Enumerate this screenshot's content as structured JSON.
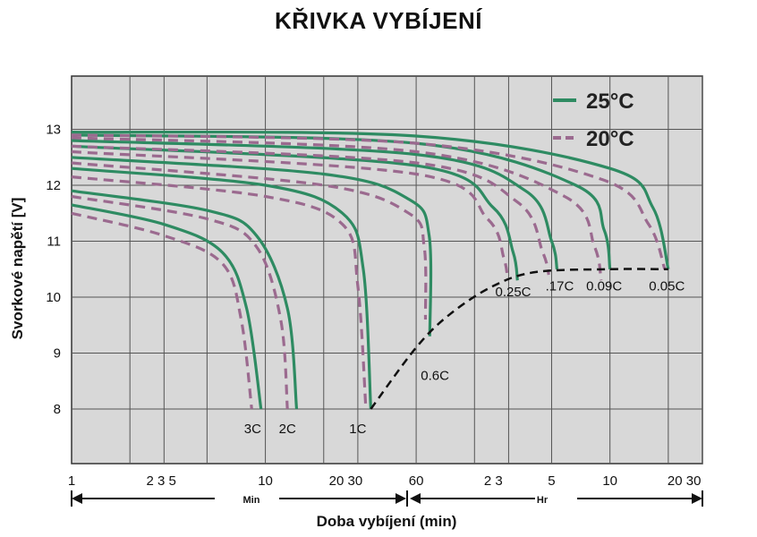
{
  "chart_data": {
    "type": "line",
    "title": "KŘIVKA VYBÍJENÍ",
    "ylabel": "Svorkové napětí [V]",
    "xlabel": "Doba vybíjení (min)",
    "ylim": [
      7,
      14
    ],
    "y_ticks": [
      "13",
      "12",
      "11",
      "10",
      "9",
      "8"
    ],
    "x_scale": "log",
    "x_unit_min_label": "Min",
    "x_unit_hr_label": "Hr",
    "x_tick_labels_min": [
      "1",
      "2 3 5",
      "10",
      "20 30",
      "60"
    ],
    "x_tick_labels_hr": [
      "2 3",
      "5",
      "10",
      "20 30"
    ],
    "grid": true,
    "legend_position": "top-right",
    "legend": [
      {
        "name": "25°C",
        "color": "#2e8b62",
        "style": "solid"
      },
      {
        "name": "20°C",
        "color": "#9b6a8f",
        "style": "dashed"
      }
    ],
    "curve_labels": [
      "3C",
      "2C",
      "1C",
      "0.6C",
      "0.25C",
      ".17C",
      "0.09C",
      "0.05C"
    ],
    "series": [
      {
        "label": "3C",
        "temp": "25°C",
        "points": [
          [
            1,
            11.65
          ],
          [
            3,
            11.3
          ],
          [
            6,
            10.8
          ],
          [
            8,
            9.8
          ],
          [
            9.5,
            8.0
          ]
        ]
      },
      {
        "label": "3C",
        "temp": "20°C",
        "points": [
          [
            1,
            11.5
          ],
          [
            3,
            11.1
          ],
          [
            6,
            10.6
          ],
          [
            7.5,
            9.6
          ],
          [
            8.5,
            8.0
          ]
        ]
      },
      {
        "label": "2C",
        "temp": "25°C",
        "points": [
          [
            1,
            11.9
          ],
          [
            5,
            11.55
          ],
          [
            9,
            11.1
          ],
          [
            13,
            9.8
          ],
          [
            14.5,
            8.0
          ]
        ]
      },
      {
        "label": "2C",
        "temp": "20°C",
        "points": [
          [
            1,
            11.8
          ],
          [
            5,
            11.4
          ],
          [
            9,
            10.9
          ],
          [
            12,
            9.6
          ],
          [
            13,
            8.0
          ]
        ]
      },
      {
        "label": "1C",
        "temp": "25°C",
        "points": [
          [
            1,
            12.3
          ],
          [
            10,
            12.0
          ],
          [
            25,
            11.5
          ],
          [
            32,
            10.5
          ],
          [
            35,
            8.0
          ]
        ]
      },
      {
        "label": "1C",
        "temp": "20°C",
        "points": [
          [
            1,
            12.15
          ],
          [
            10,
            11.8
          ],
          [
            25,
            11.3
          ],
          [
            30,
            10.2
          ],
          [
            33,
            8.0
          ]
        ]
      },
      {
        "label": "0.6C",
        "temp": "25°C",
        "points": [
          [
            1,
            12.5
          ],
          [
            20,
            12.2
          ],
          [
            55,
            11.75
          ],
          [
            70,
            11.1
          ],
          [
            70.5,
            9.3
          ]
        ]
      },
      {
        "label": "0.6C",
        "temp": "20°C",
        "points": [
          [
            1,
            12.4
          ],
          [
            20,
            12.0
          ],
          [
            55,
            11.5
          ],
          [
            66,
            10.9
          ],
          [
            67,
            9.6
          ]
        ]
      },
      {
        "label": "0.25C",
        "temp": "25°C",
        "points": [
          [
            1,
            12.7
          ],
          [
            60,
            12.35
          ],
          [
            150,
            11.6
          ],
          [
            190,
            10.8
          ],
          [
            200,
            10.3
          ]
        ]
      },
      {
        "label": "0.25C",
        "temp": "20°C",
        "points": [
          [
            1,
            12.6
          ],
          [
            60,
            12.2
          ],
          [
            140,
            11.4
          ],
          [
            170,
            10.7
          ],
          [
            178,
            10.3
          ]
        ]
      },
      {
        "label": ".17C",
        "temp": "25°C",
        "points": [
          [
            1,
            12.8
          ],
          [
            60,
            12.55
          ],
          [
            220,
            11.9
          ],
          [
            300,
            11.0
          ],
          [
            320,
            10.5
          ]
        ]
      },
      {
        "label": ".17C",
        "temp": "20°C",
        "points": [
          [
            1,
            12.7
          ],
          [
            60,
            12.4
          ],
          [
            200,
            11.7
          ],
          [
            270,
            10.8
          ],
          [
            290,
            10.4
          ]
        ]
      },
      {
        "label": "0.09C",
        "temp": "25°C",
        "points": [
          [
            1,
            12.9
          ],
          [
            60,
            12.75
          ],
          [
            400,
            12.0
          ],
          [
            560,
            11.2
          ],
          [
            600,
            10.5
          ]
        ]
      },
      {
        "label": "0.09C",
        "temp": "20°C",
        "points": [
          [
            1,
            12.85
          ],
          [
            60,
            12.6
          ],
          [
            350,
            11.8
          ],
          [
            500,
            10.9
          ],
          [
            540,
            10.3
          ]
        ]
      },
      {
        "label": "0.05C",
        "temp": "25°C",
        "points": [
          [
            1,
            12.95
          ],
          [
            60,
            12.88
          ],
          [
            600,
            12.3
          ],
          [
            1000,
            11.6
          ],
          [
            1200,
            10.5
          ]
        ]
      },
      {
        "label": "0.05C",
        "temp": "20°C",
        "points": [
          [
            1,
            12.9
          ],
          [
            60,
            12.75
          ],
          [
            550,
            12.1
          ],
          [
            950,
            11.3
          ],
          [
            1150,
            10.5
          ]
        ]
      }
    ],
    "end_voltage_curve": {
      "style": "dashed",
      "color": "#111111",
      "points": [
        [
          35,
          8.0
        ],
        [
          60,
          9.1
        ],
        [
          90,
          9.7
        ],
        [
          150,
          10.2
        ],
        [
          250,
          10.45
        ],
        [
          600,
          10.5
        ],
        [
          1200,
          10.5
        ]
      ]
    }
  }
}
